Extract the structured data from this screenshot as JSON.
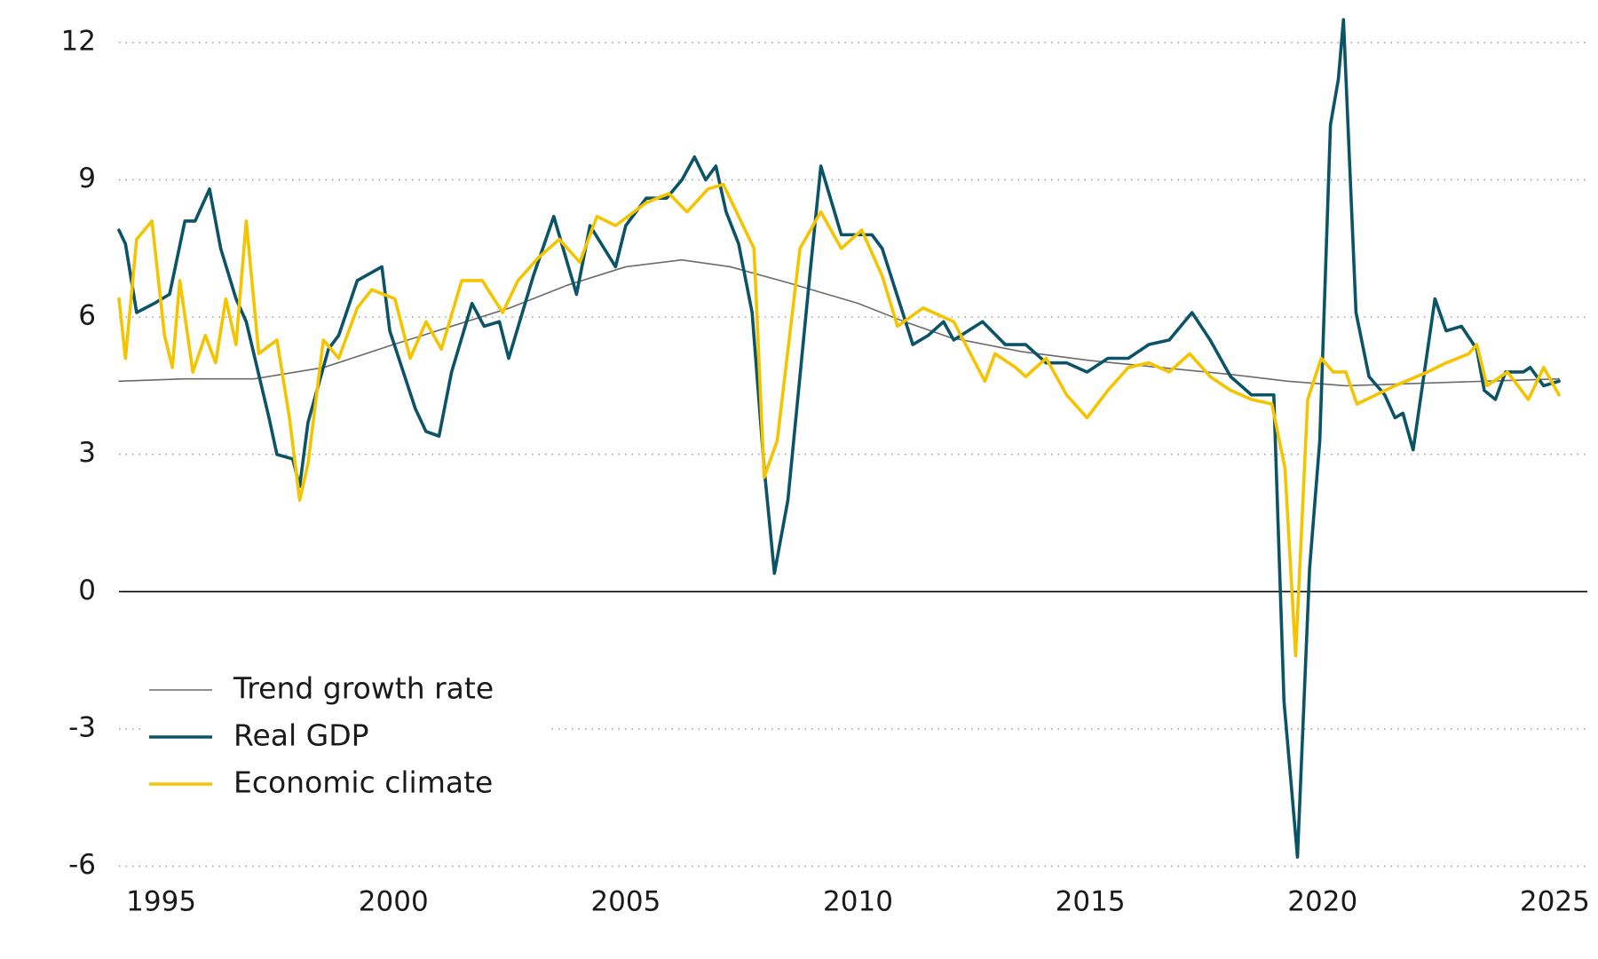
{
  "chart_data": {
    "type": "line",
    "xlim": [
      1994.09,
      2025.7
    ],
    "xticks": [
      1995,
      2000,
      2005,
      2010,
      2015,
      2020,
      2025
    ],
    "ylim": [
      -6.3,
      12.6
    ],
    "yticks": [
      -6,
      -3,
      0,
      3,
      6,
      9,
      12
    ],
    "grid": true,
    "legend": "lower left",
    "series": [
      {
        "name": "Trend growth rate",
        "color": "#6b6b6b",
        "width": 1.6,
        "x": [
          1994.09,
          1995.5,
          1997.0,
          1998.5,
          2000.0,
          2001.25,
          2002.5,
          2003.75,
          2005.0,
          2006.2,
          2007.25,
          2008.5,
          2010.0,
          2011.0,
          2012.0,
          2013.5,
          2015.0,
          2016.5,
          2018.0,
          2019.25,
          2020.5,
          2022.0,
          2023.5,
          2025.09
        ],
        "values": [
          4.6,
          4.65,
          4.65,
          4.9,
          5.4,
          5.8,
          6.2,
          6.7,
          7.1,
          7.25,
          7.1,
          6.75,
          6.3,
          5.9,
          5.55,
          5.25,
          5.05,
          4.9,
          4.75,
          4.6,
          4.5,
          4.55,
          4.6,
          4.65
        ]
      },
      {
        "name": "Real GDP",
        "color": "#0b5468",
        "width": 3.6,
        "x": [
          1994.09,
          1994.23,
          1994.47,
          1994.85,
          1995.18,
          1995.51,
          1995.73,
          1996.04,
          1996.28,
          1996.61,
          1996.83,
          1997.32,
          1997.49,
          1997.83,
          1997.98,
          1998.16,
          1998.6,
          1998.82,
          1999.22,
          1999.75,
          1999.92,
          2000.47,
          2000.7,
          2000.98,
          2001.25,
          2001.69,
          2001.95,
          2002.28,
          2002.48,
          2003.01,
          2003.45,
          2003.94,
          2004.23,
          2004.78,
          2005.0,
          2005.44,
          2005.88,
          2006.21,
          2006.48,
          2006.72,
          2006.94,
          2007.16,
          2007.43,
          2007.72,
          2007.98,
          2008.2,
          2008.49,
          2008.97,
          2009.2,
          2009.64,
          2010.3,
          2010.52,
          2010.74,
          2011.18,
          2011.51,
          2011.84,
          2012.06,
          2012.68,
          2013.17,
          2013.61,
          2014.05,
          2014.49,
          2014.93,
          2015.38,
          2015.82,
          2016.26,
          2016.7,
          2017.19,
          2017.58,
          2018.02,
          2018.47,
          2018.95,
          2019.17,
          2019.46,
          2019.72,
          2019.94,
          2020.17,
          2020.34,
          2020.45,
          2020.72,
          2021.0,
          2021.34,
          2021.56,
          2021.73,
          2021.95,
          2022.42,
          2022.66,
          2022.99,
          2023.32,
          2023.48,
          2023.72,
          2023.94,
          2024.32,
          2024.47,
          2024.76,
          2025.09
        ],
        "values": [
          7.9,
          7.6,
          6.1,
          6.3,
          6.5,
          8.1,
          8.1,
          8.8,
          7.5,
          6.4,
          5.9,
          3.8,
          3.0,
          2.9,
          2.3,
          3.7,
          5.3,
          5.6,
          6.8,
          7.1,
          5.7,
          4.0,
          3.5,
          3.4,
          4.8,
          6.3,
          5.8,
          5.9,
          5.1,
          6.9,
          8.2,
          6.5,
          8.0,
          7.1,
          8.0,
          8.6,
          8.6,
          9.0,
          9.5,
          9.0,
          9.3,
          8.3,
          7.6,
          6.1,
          2.7,
          0.4,
          2.0,
          7.0,
          9.3,
          7.8,
          7.8,
          7.5,
          6.8,
          5.4,
          5.6,
          5.9,
          5.5,
          5.9,
          5.4,
          5.4,
          5.0,
          5.0,
          4.8,
          5.1,
          5.1,
          5.4,
          5.5,
          6.1,
          5.5,
          4.7,
          4.3,
          4.3,
          -2.4,
          -5.8,
          0.5,
          3.3,
          10.2,
          11.2,
          12.5,
          6.1,
          4.7,
          4.3,
          3.8,
          3.9,
          3.1,
          6.4,
          5.7,
          5.8,
          5.3,
          4.4,
          4.2,
          4.8,
          4.8,
          4.9,
          4.5,
          4.6
        ]
      },
      {
        "name": "Economic climate",
        "color": "#f5c400",
        "width": 3.6,
        "x": [
          1994.09,
          1994.23,
          1994.47,
          1994.8,
          1995.07,
          1995.24,
          1995.4,
          1995.68,
          1995.95,
          1996.17,
          1996.39,
          1996.61,
          1996.83,
          1997.1,
          1997.49,
          1997.76,
          1997.98,
          1998.16,
          1998.49,
          1998.82,
          1999.22,
          1999.53,
          2000.03,
          2000.36,
          2000.7,
          2001.03,
          2001.47,
          2001.91,
          2002.35,
          2002.68,
          2003.12,
          2003.57,
          2004.01,
          2004.38,
          2004.78,
          2005.44,
          2005.93,
          2006.32,
          2006.77,
          2007.1,
          2007.43,
          2007.76,
          2007.98,
          2008.26,
          2008.75,
          2009.2,
          2009.64,
          2010.08,
          2010.52,
          2010.85,
          2011.4,
          2012.06,
          2012.73,
          2012.95,
          2013.39,
          2013.61,
          2014.05,
          2014.49,
          2014.93,
          2015.38,
          2015.82,
          2016.26,
          2016.7,
          2017.14,
          2017.58,
          2018.02,
          2018.47,
          2018.91,
          2019.19,
          2019.42,
          2019.68,
          2019.97,
          2020.23,
          2020.5,
          2020.74,
          2021.56,
          2022.26,
          2022.66,
          2023.15,
          2023.32,
          2023.54,
          2023.98,
          2024.43,
          2024.76,
          2025.09
        ],
        "values": [
          6.4,
          5.1,
          7.7,
          8.1,
          5.6,
          4.9,
          6.8,
          4.8,
          5.6,
          5.0,
          6.4,
          5.4,
          8.1,
          5.2,
          5.5,
          3.8,
          2.0,
          2.8,
          5.5,
          5.1,
          6.2,
          6.6,
          6.4,
          5.1,
          5.9,
          5.3,
          6.8,
          6.8,
          6.1,
          6.8,
          7.3,
          7.7,
          7.2,
          8.2,
          8.0,
          8.5,
          8.7,
          8.3,
          8.8,
          8.9,
          8.2,
          7.5,
          2.5,
          3.3,
          7.5,
          8.3,
          7.5,
          7.9,
          6.9,
          5.8,
          6.2,
          5.9,
          4.6,
          5.2,
          4.9,
          4.7,
          5.1,
          4.3,
          3.8,
          4.4,
          4.9,
          5.0,
          4.8,
          5.2,
          4.7,
          4.4,
          4.2,
          4.1,
          2.7,
          -1.4,
          4.2,
          5.1,
          4.8,
          4.8,
          4.1,
          4.5,
          4.8,
          5.0,
          5.2,
          5.4,
          4.5,
          4.8,
          4.2,
          4.9,
          4.3
        ]
      }
    ]
  }
}
